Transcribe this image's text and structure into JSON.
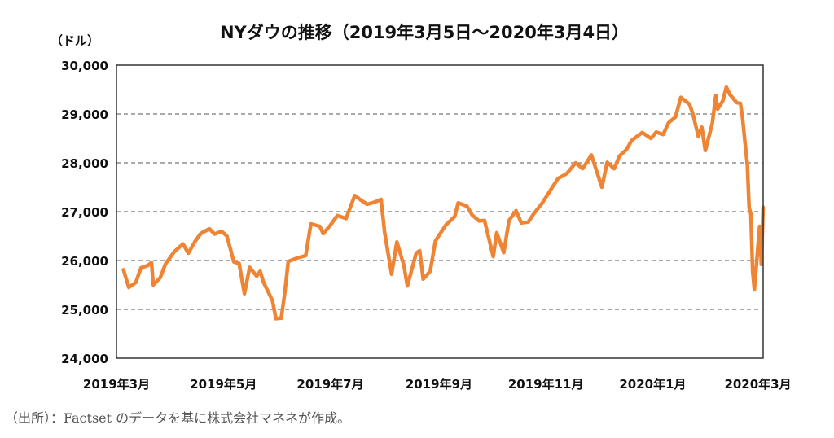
{
  "chart_data": {
    "type": "line",
    "title": "NYダウの推移（2019年3月5日～2020年3月4日）",
    "ylabel": "（ドル）",
    "ylim": [
      24000,
      30000
    ],
    "yticks": [
      "30,000",
      "29,000",
      "28,000",
      "27,000",
      "26,000",
      "25,000",
      "24,000"
    ],
    "ytick_values": [
      30000,
      29000,
      28000,
      27000,
      26000,
      25000,
      24000
    ],
    "xticks": [
      "2019年3月",
      "2019年5月",
      "2019年7月",
      "2019年9月",
      "2019年11月",
      "2020年1月",
      "2020年3月"
    ],
    "xtick_dates": [
      "2019-03-01",
      "2019-05-01",
      "2019-07-01",
      "2019-09-01",
      "2019-11-01",
      "2020-01-01",
      "2020-03-01"
    ],
    "xlim": [
      "2019-03-01",
      "2020-03-04"
    ],
    "grid": "horizontal-dashed",
    "line_color": "#EE8434",
    "series": [
      {
        "points": [
          [
            "2019-03-05",
            25810
          ],
          [
            "2019-03-08",
            25450
          ],
          [
            "2019-03-12",
            25550
          ],
          [
            "2019-03-15",
            25850
          ],
          [
            "2019-03-19",
            25900
          ],
          [
            "2019-03-21",
            25960
          ],
          [
            "2019-03-22",
            25500
          ],
          [
            "2019-03-26",
            25650
          ],
          [
            "2019-03-29",
            25930
          ],
          [
            "2019-04-03",
            26180
          ],
          [
            "2019-04-08",
            26340
          ],
          [
            "2019-04-11",
            26150
          ],
          [
            "2019-04-15",
            26400
          ],
          [
            "2019-04-18",
            26550
          ],
          [
            "2019-04-23",
            26650
          ],
          [
            "2019-04-26",
            26540
          ],
          [
            "2019-04-30",
            26600
          ],
          [
            "2019-05-03",
            26500
          ],
          [
            "2019-05-07",
            25970
          ],
          [
            "2019-05-10",
            25940
          ],
          [
            "2019-05-13",
            25320
          ],
          [
            "2019-05-16",
            25860
          ],
          [
            "2019-05-20",
            25680
          ],
          [
            "2019-05-22",
            25780
          ],
          [
            "2019-05-24",
            25550
          ],
          [
            "2019-05-29",
            25180
          ],
          [
            "2019-05-31",
            24810
          ],
          [
            "2019-06-03",
            24820
          ],
          [
            "2019-06-05",
            25330
          ],
          [
            "2019-06-07",
            25980
          ],
          [
            "2019-06-12",
            26050
          ],
          [
            "2019-06-17",
            26100
          ],
          [
            "2019-06-19",
            26550
          ],
          [
            "2019-06-20",
            26750
          ],
          [
            "2019-06-25",
            26700
          ],
          [
            "2019-06-27",
            26550
          ],
          [
            "2019-07-01",
            26720
          ],
          [
            "2019-07-05",
            26920
          ],
          [
            "2019-07-10",
            26860
          ],
          [
            "2019-07-15",
            27330
          ],
          [
            "2019-07-18",
            27250
          ],
          [
            "2019-07-22",
            27150
          ],
          [
            "2019-07-26",
            27190
          ],
          [
            "2019-07-30",
            27250
          ],
          [
            "2019-08-01",
            26580
          ],
          [
            "2019-08-05",
            25720
          ],
          [
            "2019-08-08",
            26380
          ],
          [
            "2019-08-12",
            25900
          ],
          [
            "2019-08-14",
            25480
          ],
          [
            "2019-08-19",
            26150
          ],
          [
            "2019-08-21",
            26200
          ],
          [
            "2019-08-23",
            25620
          ],
          [
            "2019-08-27",
            25780
          ],
          [
            "2019-08-30",
            26400
          ],
          [
            "2019-09-05",
            26730
          ],
          [
            "2019-09-10",
            26900
          ],
          [
            "2019-09-12",
            27180
          ],
          [
            "2019-09-17",
            27110
          ],
          [
            "2019-09-20",
            26930
          ],
          [
            "2019-09-24",
            26810
          ],
          [
            "2019-09-27",
            26820
          ],
          [
            "2019-10-02",
            26080
          ],
          [
            "2019-10-04",
            26570
          ],
          [
            "2019-10-08",
            26160
          ],
          [
            "2019-10-11",
            26820
          ],
          [
            "2019-10-15",
            27020
          ],
          [
            "2019-10-18",
            26770
          ],
          [
            "2019-10-22",
            26790
          ],
          [
            "2019-10-25",
            26950
          ],
          [
            "2019-10-30",
            27180
          ],
          [
            "2019-11-04",
            27460
          ],
          [
            "2019-11-08",
            27680
          ],
          [
            "2019-11-13",
            27780
          ],
          [
            "2019-11-18",
            28000
          ],
          [
            "2019-11-22",
            27880
          ],
          [
            "2019-11-27",
            28160
          ],
          [
            "2019-12-03",
            27500
          ],
          [
            "2019-12-06",
            28010
          ],
          [
            "2019-12-10",
            27880
          ],
          [
            "2019-12-13",
            28140
          ],
          [
            "2019-12-17",
            28270
          ],
          [
            "2019-12-20",
            28460
          ],
          [
            "2019-12-26",
            28620
          ],
          [
            "2019-12-31",
            28500
          ],
          [
            "2020-01-03",
            28630
          ],
          [
            "2020-01-07",
            28580
          ],
          [
            "2020-01-10",
            28820
          ],
          [
            "2020-01-14",
            28940
          ],
          [
            "2020-01-17",
            29340
          ],
          [
            "2020-01-22",
            29200
          ],
          [
            "2020-01-24",
            28990
          ],
          [
            "2020-01-27",
            28540
          ],
          [
            "2020-01-29",
            28730
          ],
          [
            "2020-01-31",
            28250
          ],
          [
            "2020-02-04",
            28810
          ],
          [
            "2020-02-06",
            29380
          ],
          [
            "2020-02-07",
            29100
          ],
          [
            "2020-02-10",
            29270
          ],
          [
            "2020-02-12",
            29550
          ],
          [
            "2020-02-14",
            29400
          ],
          [
            "2020-02-18",
            29230
          ],
          [
            "2020-02-20",
            29220
          ],
          [
            "2020-02-21",
            28990
          ],
          [
            "2020-02-24",
            27960
          ],
          [
            "2020-02-25",
            27080
          ],
          [
            "2020-02-26",
            26960
          ],
          [
            "2020-02-27",
            25770
          ],
          [
            "2020-02-28",
            25410
          ],
          [
            "2020-03-02",
            26700
          ],
          [
            "2020-03-03",
            25920
          ],
          [
            "2020-03-04",
            27090
          ]
        ]
      }
    ]
  },
  "footer": {
    "source": "（出所）：Factset のデータを基に株式会社マネネが作成。"
  }
}
